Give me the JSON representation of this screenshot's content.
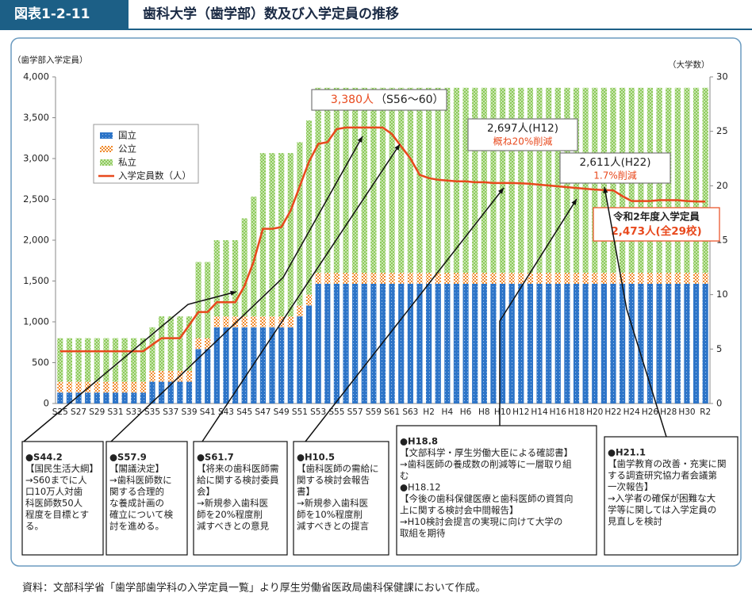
{
  "header": {
    "label": "図表1-2-11",
    "title": "歯科大学（歯学部）数及び入学定員の推移"
  },
  "chart_data": {
    "type": "bar",
    "stacked": true,
    "y_label": "（歯学部入学定員）",
    "y2_label": "（大学数）",
    "categories": [
      "S25",
      null,
      "S27",
      null,
      "S29",
      null,
      "S31",
      null,
      "S33",
      null,
      "S35",
      null,
      "S37",
      null,
      "S39",
      null,
      "S41",
      null,
      "S43",
      null,
      "S45",
      null,
      "S47",
      null,
      "S49",
      null,
      "S51",
      null,
      "S53",
      null,
      "S55",
      null,
      "S57",
      null,
      "S59",
      null,
      "S61",
      null,
      "S63",
      null,
      "H2",
      null,
      "H4",
      null,
      "H6",
      null,
      "H8",
      null,
      "H10",
      null,
      "H12",
      null,
      "H14",
      null,
      "H16",
      null,
      "H18",
      null,
      "H20",
      null,
      "H22",
      null,
      "H24",
      null,
      "H26",
      null,
      "H28",
      null,
      "H30",
      null,
      "R2"
    ],
    "series": [
      {
        "name": "国立",
        "color": "#2e75c8",
        "axis": "y2",
        "values": [
          1,
          1,
          1,
          1,
          1,
          1,
          1,
          1,
          1,
          1,
          2,
          2,
          2,
          2,
          2,
          5,
          5,
          7,
          7,
          7,
          7,
          7,
          7,
          7,
          7,
          7,
          8,
          9,
          11,
          11,
          11,
          11,
          11,
          11,
          11,
          11,
          11,
          11,
          11,
          11,
          11,
          11,
          11,
          11,
          11,
          11,
          11,
          11,
          11,
          11,
          11,
          11,
          11,
          11,
          11,
          11,
          11,
          11,
          11,
          11,
          11,
          11,
          11,
          11,
          11,
          11,
          11,
          11,
          11,
          11,
          11
        ]
      },
      {
        "name": "公立",
        "color": "#f08a2c",
        "axis": "y2",
        "values": [
          1,
          1,
          1,
          1,
          1,
          1,
          1,
          1,
          1,
          1,
          1,
          1,
          1,
          1,
          1,
          1,
          1,
          1,
          1,
          1,
          1,
          1,
          1,
          1,
          1,
          1,
          1,
          1,
          1,
          1,
          1,
          1,
          1,
          1,
          1,
          1,
          1,
          1,
          1,
          1,
          1,
          1,
          1,
          1,
          1,
          1,
          1,
          1,
          1,
          1,
          1,
          1,
          1,
          1,
          1,
          1,
          1,
          1,
          1,
          1,
          1,
          1,
          1,
          1,
          1,
          1,
          1,
          1,
          1,
          1,
          1
        ]
      },
      {
        "name": "私立",
        "color": "#7cc242",
        "axis": "y2",
        "values": [
          4,
          4,
          4,
          4,
          4,
          4,
          4,
          4,
          4,
          4,
          4,
          5,
          5,
          5,
          5,
          7,
          7,
          7,
          7,
          7,
          9,
          11,
          15,
          15,
          15,
          15,
          15,
          16,
          17,
          17,
          17,
          17,
          17,
          17,
          17,
          17,
          17,
          17,
          17,
          17,
          17,
          17,
          17,
          17,
          17,
          17,
          17,
          17,
          17,
          17,
          17,
          17,
          17,
          17,
          17,
          17,
          17,
          17,
          17,
          17,
          17,
          17,
          17,
          17,
          17,
          17,
          17,
          17,
          17,
          17,
          17
        ]
      },
      {
        "name": "入学定員数（人）",
        "type": "line",
        "color": "#e8491d",
        "values": [
          640,
          640,
          640,
          640,
          640,
          640,
          640,
          640,
          640,
          640,
          720,
          800,
          800,
          800,
          960,
          1120,
          1120,
          1240,
          1240,
          1240,
          1440,
          1740,
          2140,
          2140,
          2160,
          2360,
          2660,
          2960,
          3180,
          3200,
          3360,
          3380,
          3380,
          3380,
          3380,
          3380,
          3300,
          3150,
          3000,
          2800,
          2760,
          2740,
          2730,
          2720,
          2720,
          2710,
          2710,
          2700,
          2700,
          2700,
          2697,
          2690,
          2680,
          2670,
          2660,
          2650,
          2640,
          2630,
          2620,
          2615,
          2611,
          2540,
          2480,
          2480,
          2480,
          2490,
          2490,
          2490,
          2480,
          2475,
          2473
        ]
      }
    ],
    "ylim": [
      0,
      4000
    ],
    "yticks": [
      0,
      500,
      {
        "value": 1000,
        "label": "1,000"
      },
      {
        "value": 1500,
        "label": "1,500"
      },
      {
        "value": 2000,
        "label": "2,000"
      },
      {
        "value": 2500,
        "label": "2,500"
      },
      {
        "value": 3000,
        "label": "3,000"
      },
      {
        "value": 3500,
        "label": "3,500"
      },
      {
        "value": 4000,
        "label": "4,000"
      }
    ],
    "y2lim": [
      0,
      30
    ],
    "y2ticks": [
      0,
      5,
      10,
      15,
      20,
      25,
      30
    ],
    "grid": false,
    "callouts": [
      {
        "value": "3,380人",
        "note": "（S56～60）"
      },
      {
        "value": "2,697人(H12)",
        "note": "概ね20%削減"
      },
      {
        "value": "2,611人(H22)",
        "note": "1.7%削減"
      },
      {
        "value": "2,473人(全29校)",
        "note": "令和2年度入学定員"
      }
    ]
  },
  "notes": [
    [
      "●S44.2",
      "【国民生活大綱】",
      "→S60までに人",
      "口10万人対歯",
      "科医師数50人",
      "程度を目標とす",
      "る。"
    ],
    [
      "●S57.9",
      "【閣議決定】",
      "→歯科医師数に",
      "関する合理的",
      "な養成計画の",
      "確立について検",
      "討を進める。"
    ],
    [
      "●S61.7",
      "【将来の歯科医師需",
      "給に関する検討委員",
      "会】",
      "→新規参入歯科医",
      "師を20%程度削",
      "減すべきとの意見"
    ],
    [
      "●H10.5",
      "【歯科医師の需給に",
      "関する検討会報告",
      "書】",
      "→新規参入歯科医",
      "師を10%程度削",
      "減すべきとの提言"
    ],
    [
      "●H18.8",
      "【文部科学・厚生労働大臣による確認書】",
      "→歯科医師の養成数の削減等に一層取り組",
      "む",
      "●H18.12",
      "【今後の歯科保健医療と歯科医師の資質向",
      "上に関する検討会中間報告】",
      "→H10検討会提言の実現に向けて大学の",
      "取組を期待"
    ],
    [
      "●H21.1",
      "【歯学教育の改善・充実に関",
      "する調査研究協力者会議第",
      "一次報告】",
      "→入学者の確保が困難な大",
      "学等に関しては入学定員の",
      "見直しを検討"
    ]
  ],
  "source": "資料：文部科学省「歯学部歯学科の入学定員一覧」より厚生労働省医政局歯科保健課において作成。"
}
